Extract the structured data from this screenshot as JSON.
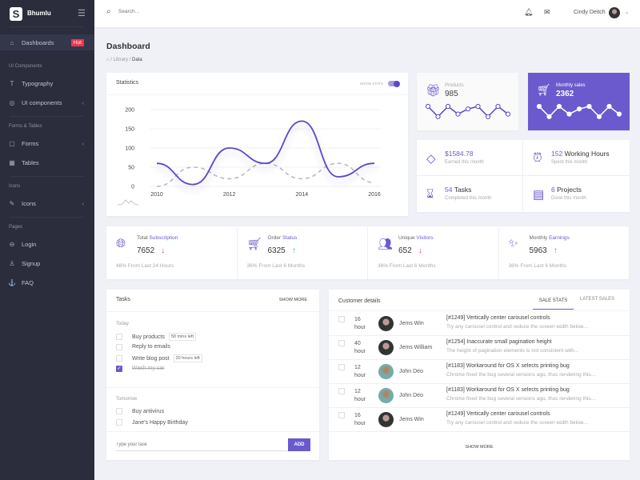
{
  "brand": {
    "name": "Bhumlu",
    "logo_letter": "S"
  },
  "sidebar": {
    "sections": [
      "UI Components",
      "Forms & Tables",
      "Icons",
      "Pages"
    ],
    "items": [
      {
        "label": "Dashboards",
        "badge": "Hot",
        "icon": "home-icon"
      },
      {
        "label": "Typography",
        "icon": "type-icon"
      },
      {
        "label": "UI components",
        "icon": "dribbble-icon"
      },
      {
        "label": "Forms",
        "icon": "clipboard-icon"
      },
      {
        "label": "Tables",
        "icon": "grid-icon"
      },
      {
        "label": "Icons",
        "icon": "feather-icon"
      },
      {
        "label": "Login",
        "icon": "lock-icon"
      },
      {
        "label": "Signup",
        "icon": "user-icon"
      },
      {
        "label": "FAQ",
        "icon": "anchor-icon"
      }
    ]
  },
  "header": {
    "search_placeholder": "Search...",
    "user_name": "Cindy Deitch"
  },
  "page": {
    "title": "Dashboard",
    "breadcrumb": [
      "Library",
      "Data"
    ]
  },
  "statistics": {
    "title": "Statistics",
    "toggle_label": "SHOW STATS",
    "toggle_on": true
  },
  "chart_data": {
    "type": "line",
    "x": [
      2010,
      2011,
      2012,
      2013,
      2014,
      2015,
      2016
    ],
    "xticks": [
      "2010",
      "2012",
      "2014",
      "2016"
    ],
    "yticks": [
      "0",
      "50",
      "100",
      "150",
      "200"
    ],
    "ylim": [
      0,
      200
    ],
    "grid": true,
    "series": [
      {
        "values": [
          60,
          5,
          100,
          60,
          170,
          25,
          60
        ],
        "color": "#5a48c8",
        "style": "solid"
      },
      {
        "values": [
          0,
          50,
          20,
          60,
          20,
          60,
          10
        ],
        "color": "#bbbbbb",
        "style": "dashed"
      }
    ]
  },
  "products": {
    "label": "Products",
    "value": "985",
    "spark": [
      6,
      2,
      6,
      3,
      5,
      6,
      2,
      6,
      3
    ]
  },
  "monthly_sales": {
    "label": "Monthly sales",
    "value": "2362",
    "spark": [
      6,
      2,
      6,
      3,
      5,
      6,
      2,
      6,
      3
    ]
  },
  "mini_stats": [
    {
      "value": "$1584.78",
      "suffix": "",
      "sub": "Earned this month",
      "icon": "diamond-icon"
    },
    {
      "value": "152",
      "suffix": "Working Hours",
      "sub": "Spent this month",
      "icon": "alarm-clock-icon"
    },
    {
      "value": "54",
      "suffix": "Tasks",
      "sub": "Completed this month",
      "icon": "hourglass-icon"
    },
    {
      "value": "6",
      "suffix": "Projects",
      "sub": "Done this month",
      "icon": "id-card-icon"
    }
  ],
  "kpis": [
    {
      "title_a": "Total",
      "title_b": "Subscription",
      "value": "7652",
      "trend": "down",
      "footer": "48% From Last 24 Hours",
      "icon": "globe-icon"
    },
    {
      "title_a": "Order",
      "title_b": "Status",
      "value": "6325",
      "trend": "up",
      "footer": "36% From Last 6 Months",
      "icon": "cart-icon"
    },
    {
      "title_a": "Unique",
      "title_b": "Visitors",
      "value": "652",
      "trend": "down",
      "footer": "36% From Last 6 Months",
      "icon": "users-icon"
    },
    {
      "title_a": "Monthly",
      "title_b": "Earnings",
      "value": "5963",
      "trend": "up",
      "footer": "36% From Last 6 Months",
      "icon": "magic-wand-icon"
    }
  ],
  "tasks": {
    "title": "Tasks",
    "show_more": "SHOW MORE",
    "today_label": "Today",
    "tomorrow_label": "Tomorrow",
    "today": [
      {
        "text": "Buy products",
        "tag": "58 mins left",
        "done": false
      },
      {
        "text": "Reply to emails",
        "tag": "",
        "done": false
      },
      {
        "text": "Write blog post",
        "tag": "20 hours left",
        "done": false
      },
      {
        "text": "Wash my car",
        "tag": "",
        "done": true
      }
    ],
    "tomorrow": [
      {
        "text": "Buy antivirus"
      },
      {
        "text": "Jane's Happy Birthday"
      }
    ],
    "input_placeholder": "Type your task",
    "add_label": "ADD"
  },
  "customers": {
    "title": "Customer details",
    "tabs": [
      "SALE STATS",
      "LATEST SALES"
    ],
    "active_tab": 0,
    "show_more": "SHOW MORE",
    "rows": [
      {
        "num": "16",
        "unit": "hour",
        "name": "Jems Win",
        "title": "[#1249] Vertically center carousel controls",
        "desc": "Try any carousel control and reduce the screen width below..."
      },
      {
        "num": "40",
        "unit": "hour",
        "name": "Jems William",
        "title": "[#1254] Inaccurate small pagination height",
        "desc": "The height of pagination elements is not consistent with..."
      },
      {
        "num": "12",
        "unit": "hour",
        "name": "John Deo",
        "title": "[#1183] Workaround for OS X selects printing bug",
        "desc": "Chrome fixed the bug several versions ago, thus rendering this..."
      },
      {
        "num": "12",
        "unit": "hour",
        "name": "John Deo",
        "title": "[#1183] Workaround for OS X selects printing bug",
        "desc": "Chrome fixed the bug several versions ago, thus rendering this..."
      },
      {
        "num": "16",
        "unit": "hour",
        "name": "Jems Win",
        "title": "[#1249] Vertically center carousel controls",
        "desc": "Try any carousel control and reduce the screen width below..."
      }
    ]
  },
  "colors": {
    "accent": "#6a5acd",
    "sidebar": "#2b2d3d",
    "hot": "#f0354f",
    "down": "#f0354f",
    "up": "#22c37a"
  }
}
